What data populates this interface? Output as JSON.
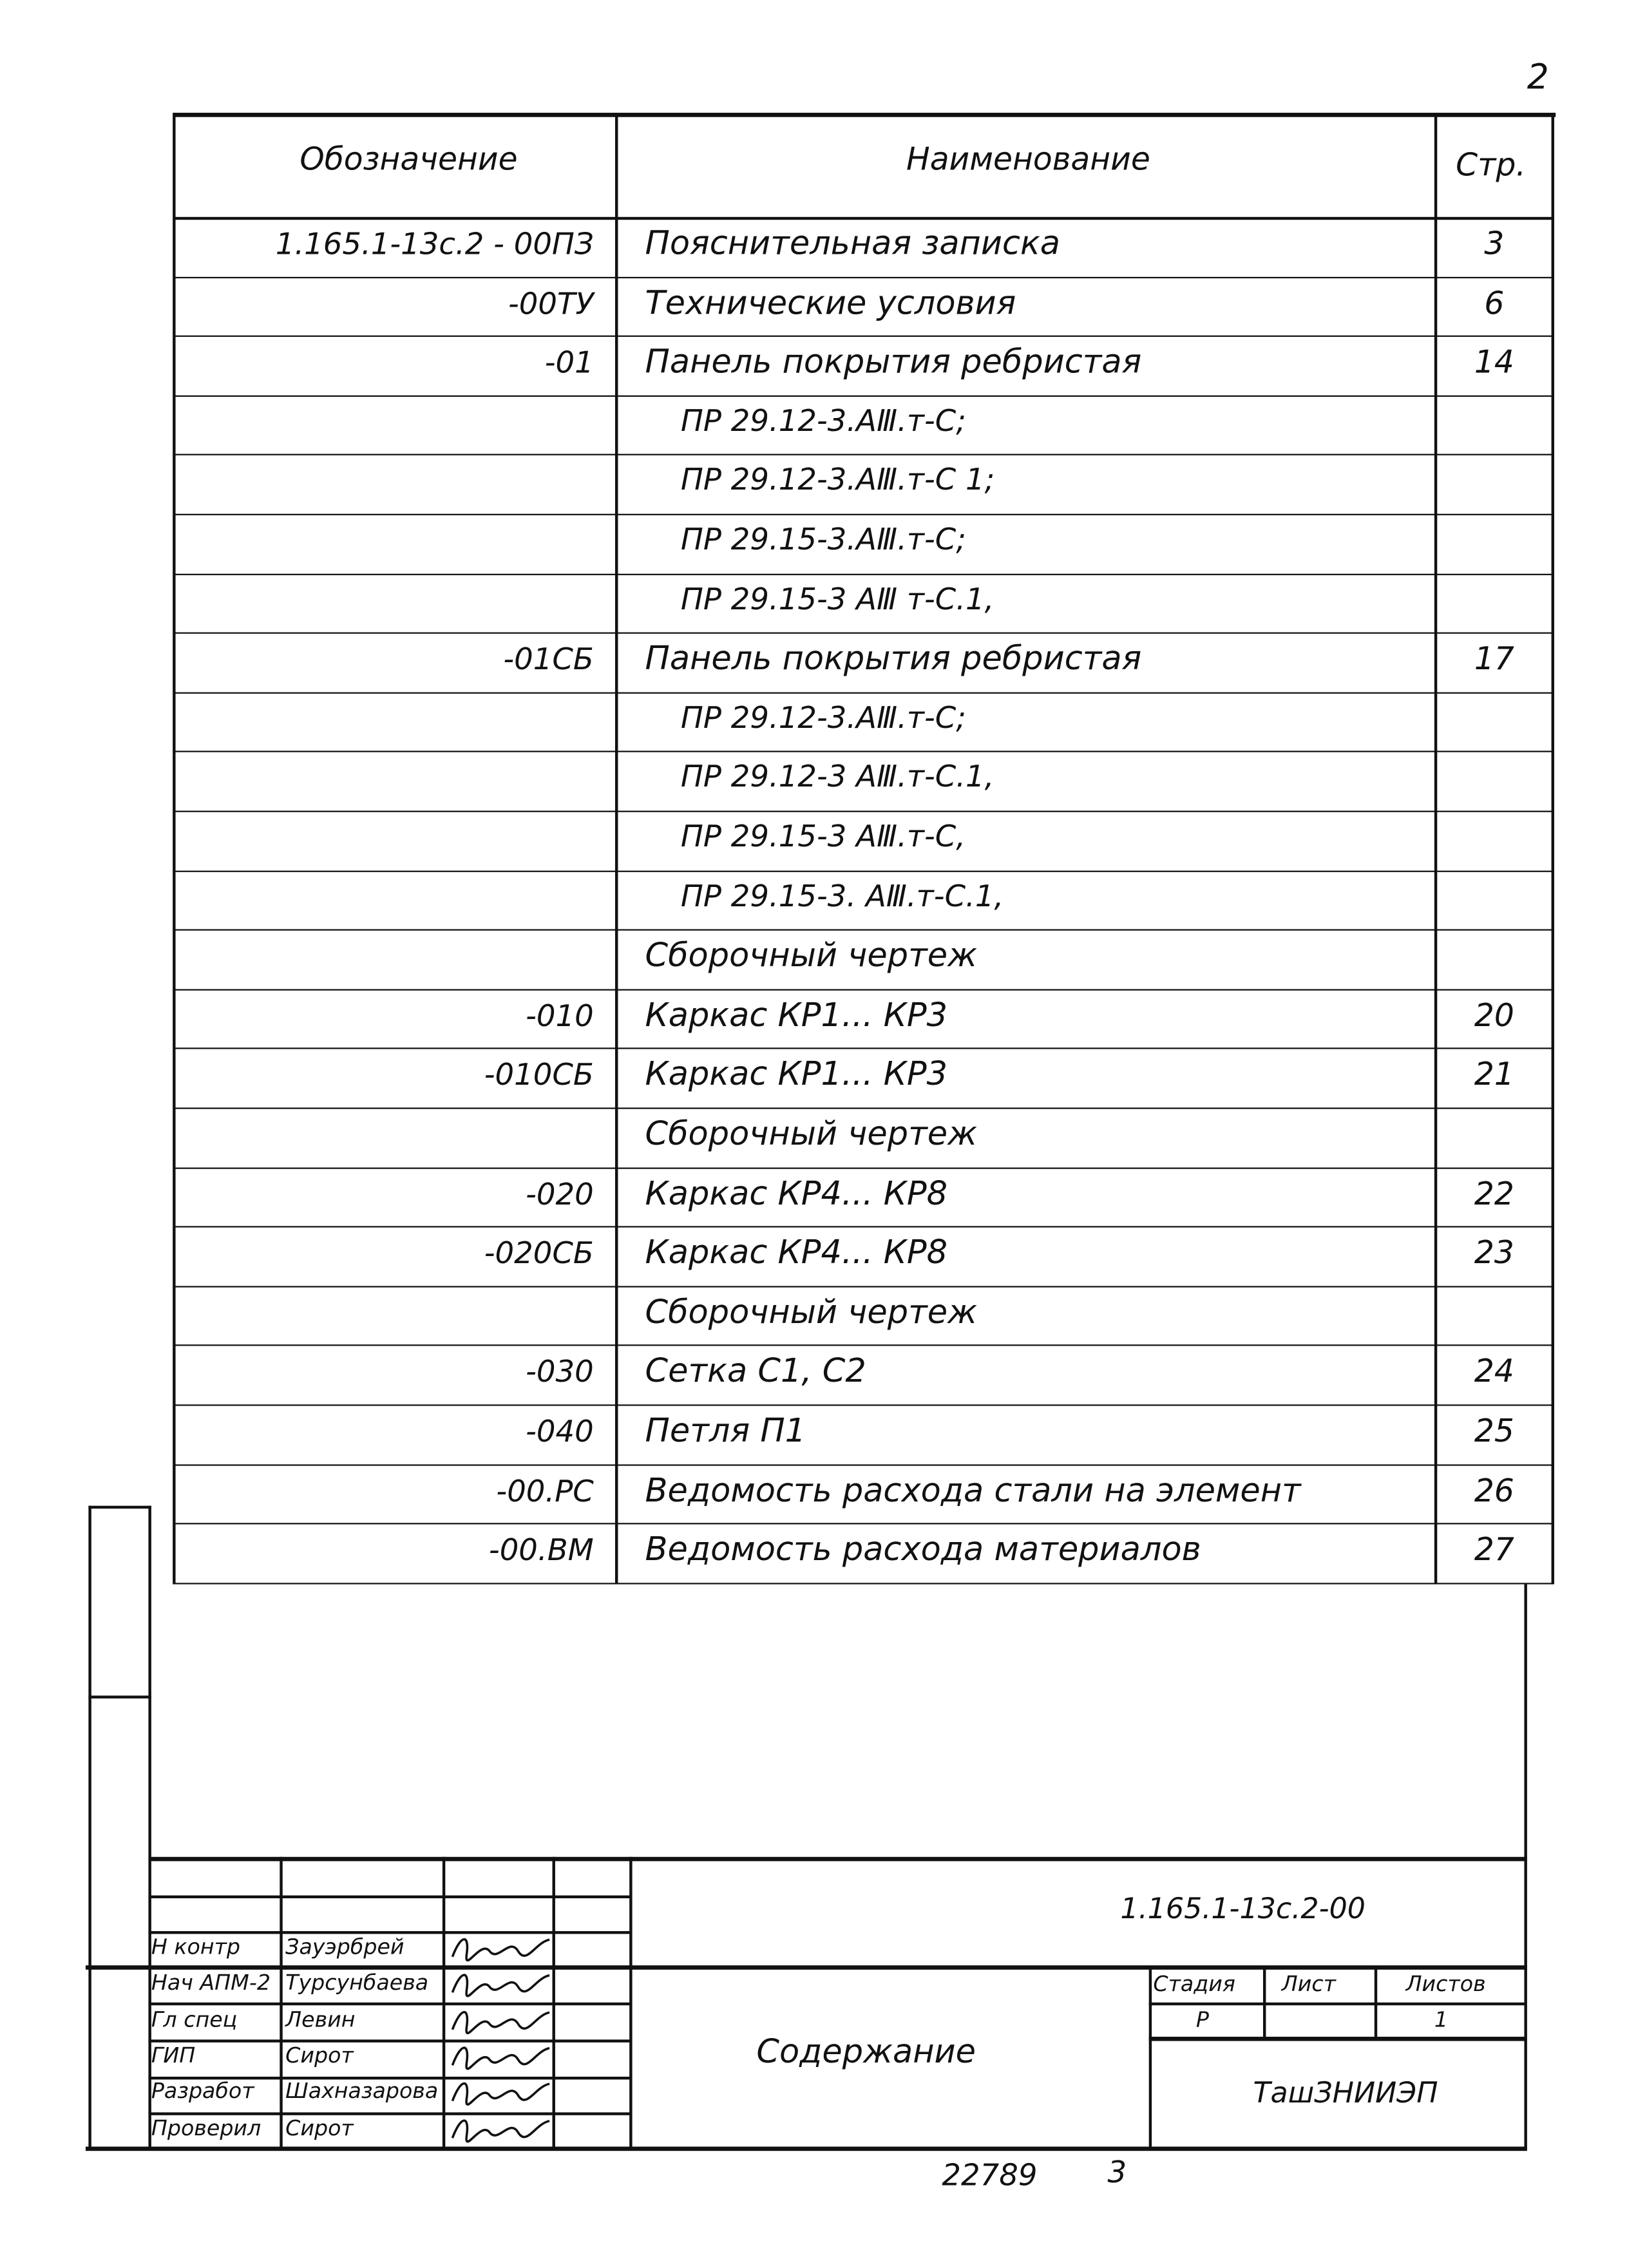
{
  "sheet_number": "2",
  "table": {
    "headers": {
      "designation": "Обозначение",
      "name": "Наименование",
      "page": "Стр."
    },
    "rows": [
      {
        "designation": "1.165.1-13с.2 - 00ПЗ",
        "name": "Пояснительная записка",
        "page": "3"
      },
      {
        "designation": "-00ТУ",
        "name": "Технические условия",
        "page": "6"
      },
      {
        "designation": "-01",
        "name": "Панель покрытия ребристая",
        "page": "14"
      },
      {
        "designation": "",
        "name": "ПР 29.12-3.АⅢ.т-С;",
        "page": "",
        "sub": true
      },
      {
        "designation": "",
        "name": "ПР 29.12-3.АⅢ.т-С 1;",
        "page": "",
        "sub": true
      },
      {
        "designation": "",
        "name": "ПР 29.15-3.АⅢ.т-С;",
        "page": "",
        "sub": true
      },
      {
        "designation": "",
        "name": "ПР 29.15-3 АⅢ т-С.1,",
        "page": "",
        "sub": true
      },
      {
        "designation": "-01СБ",
        "name": "Панель покрытия ребристая",
        "page": "17"
      },
      {
        "designation": "",
        "name": "ПР 29.12-3.АⅢ.т-С;",
        "page": "",
        "sub": true
      },
      {
        "designation": "",
        "name": "ПР 29.12-3 АⅢ.т-С.1,",
        "page": "",
        "sub": true
      },
      {
        "designation": "",
        "name": "ПР 29.15-3 АⅢ.т-С,",
        "page": "",
        "sub": true
      },
      {
        "designation": "",
        "name": "ПР 29.15-3. АⅢ.т-С.1,",
        "page": "",
        "sub": true
      },
      {
        "designation": "",
        "name": "Сборочный чертеж",
        "page": ""
      },
      {
        "designation": "-010",
        "name": "Каркас КР1... КР3",
        "page": "20"
      },
      {
        "designation": "-010СБ",
        "name": "Каркас КР1... КР3",
        "page": "21"
      },
      {
        "designation": "",
        "name": "Сборочный чертеж",
        "page": ""
      },
      {
        "designation": "-020",
        "name": "Каркас КР4... КР8",
        "page": "22"
      },
      {
        "designation": "-020СБ",
        "name": "Каркас КР4... КР8",
        "page": "23"
      },
      {
        "designation": "",
        "name": "Сборочный чертеж",
        "page": ""
      },
      {
        "designation": "-030",
        "name": "Сетка С1, С2",
        "page": "24"
      },
      {
        "designation": "-040",
        "name": "Петля П1",
        "page": "25"
      },
      {
        "designation": "-00.РС",
        "name": "Ведомость расхода стали на элемент",
        "page": "26"
      },
      {
        "designation": "-00.ВМ",
        "name": "Ведомость расхода материалов",
        "page": "27"
      }
    ]
  },
  "title_block": {
    "document_code": "1.165.1-13с.2-00",
    "title": "Содержание",
    "organization": "ТашЗНИИЭП",
    "stage_label": "Стадия",
    "sheet_label": "Лист",
    "sheets_label": "Листов",
    "stage": "Р",
    "sheet": "",
    "sheets": "1",
    "signatures": [
      {
        "role": "Н контр",
        "name": "Зауэрбрей"
      },
      {
        "role": "Нач АПМ-2",
        "name": "Турсунбаева"
      },
      {
        "role": "Гл спец",
        "name": "Левин"
      },
      {
        "role": "ГИП",
        "name": "Сирот"
      },
      {
        "role": "Разработ",
        "name": "Шахназарова"
      },
      {
        "role": "Проверил",
        "name": "Сирот"
      }
    ]
  },
  "footer": {
    "inventory_number": "22789",
    "page": "3"
  }
}
